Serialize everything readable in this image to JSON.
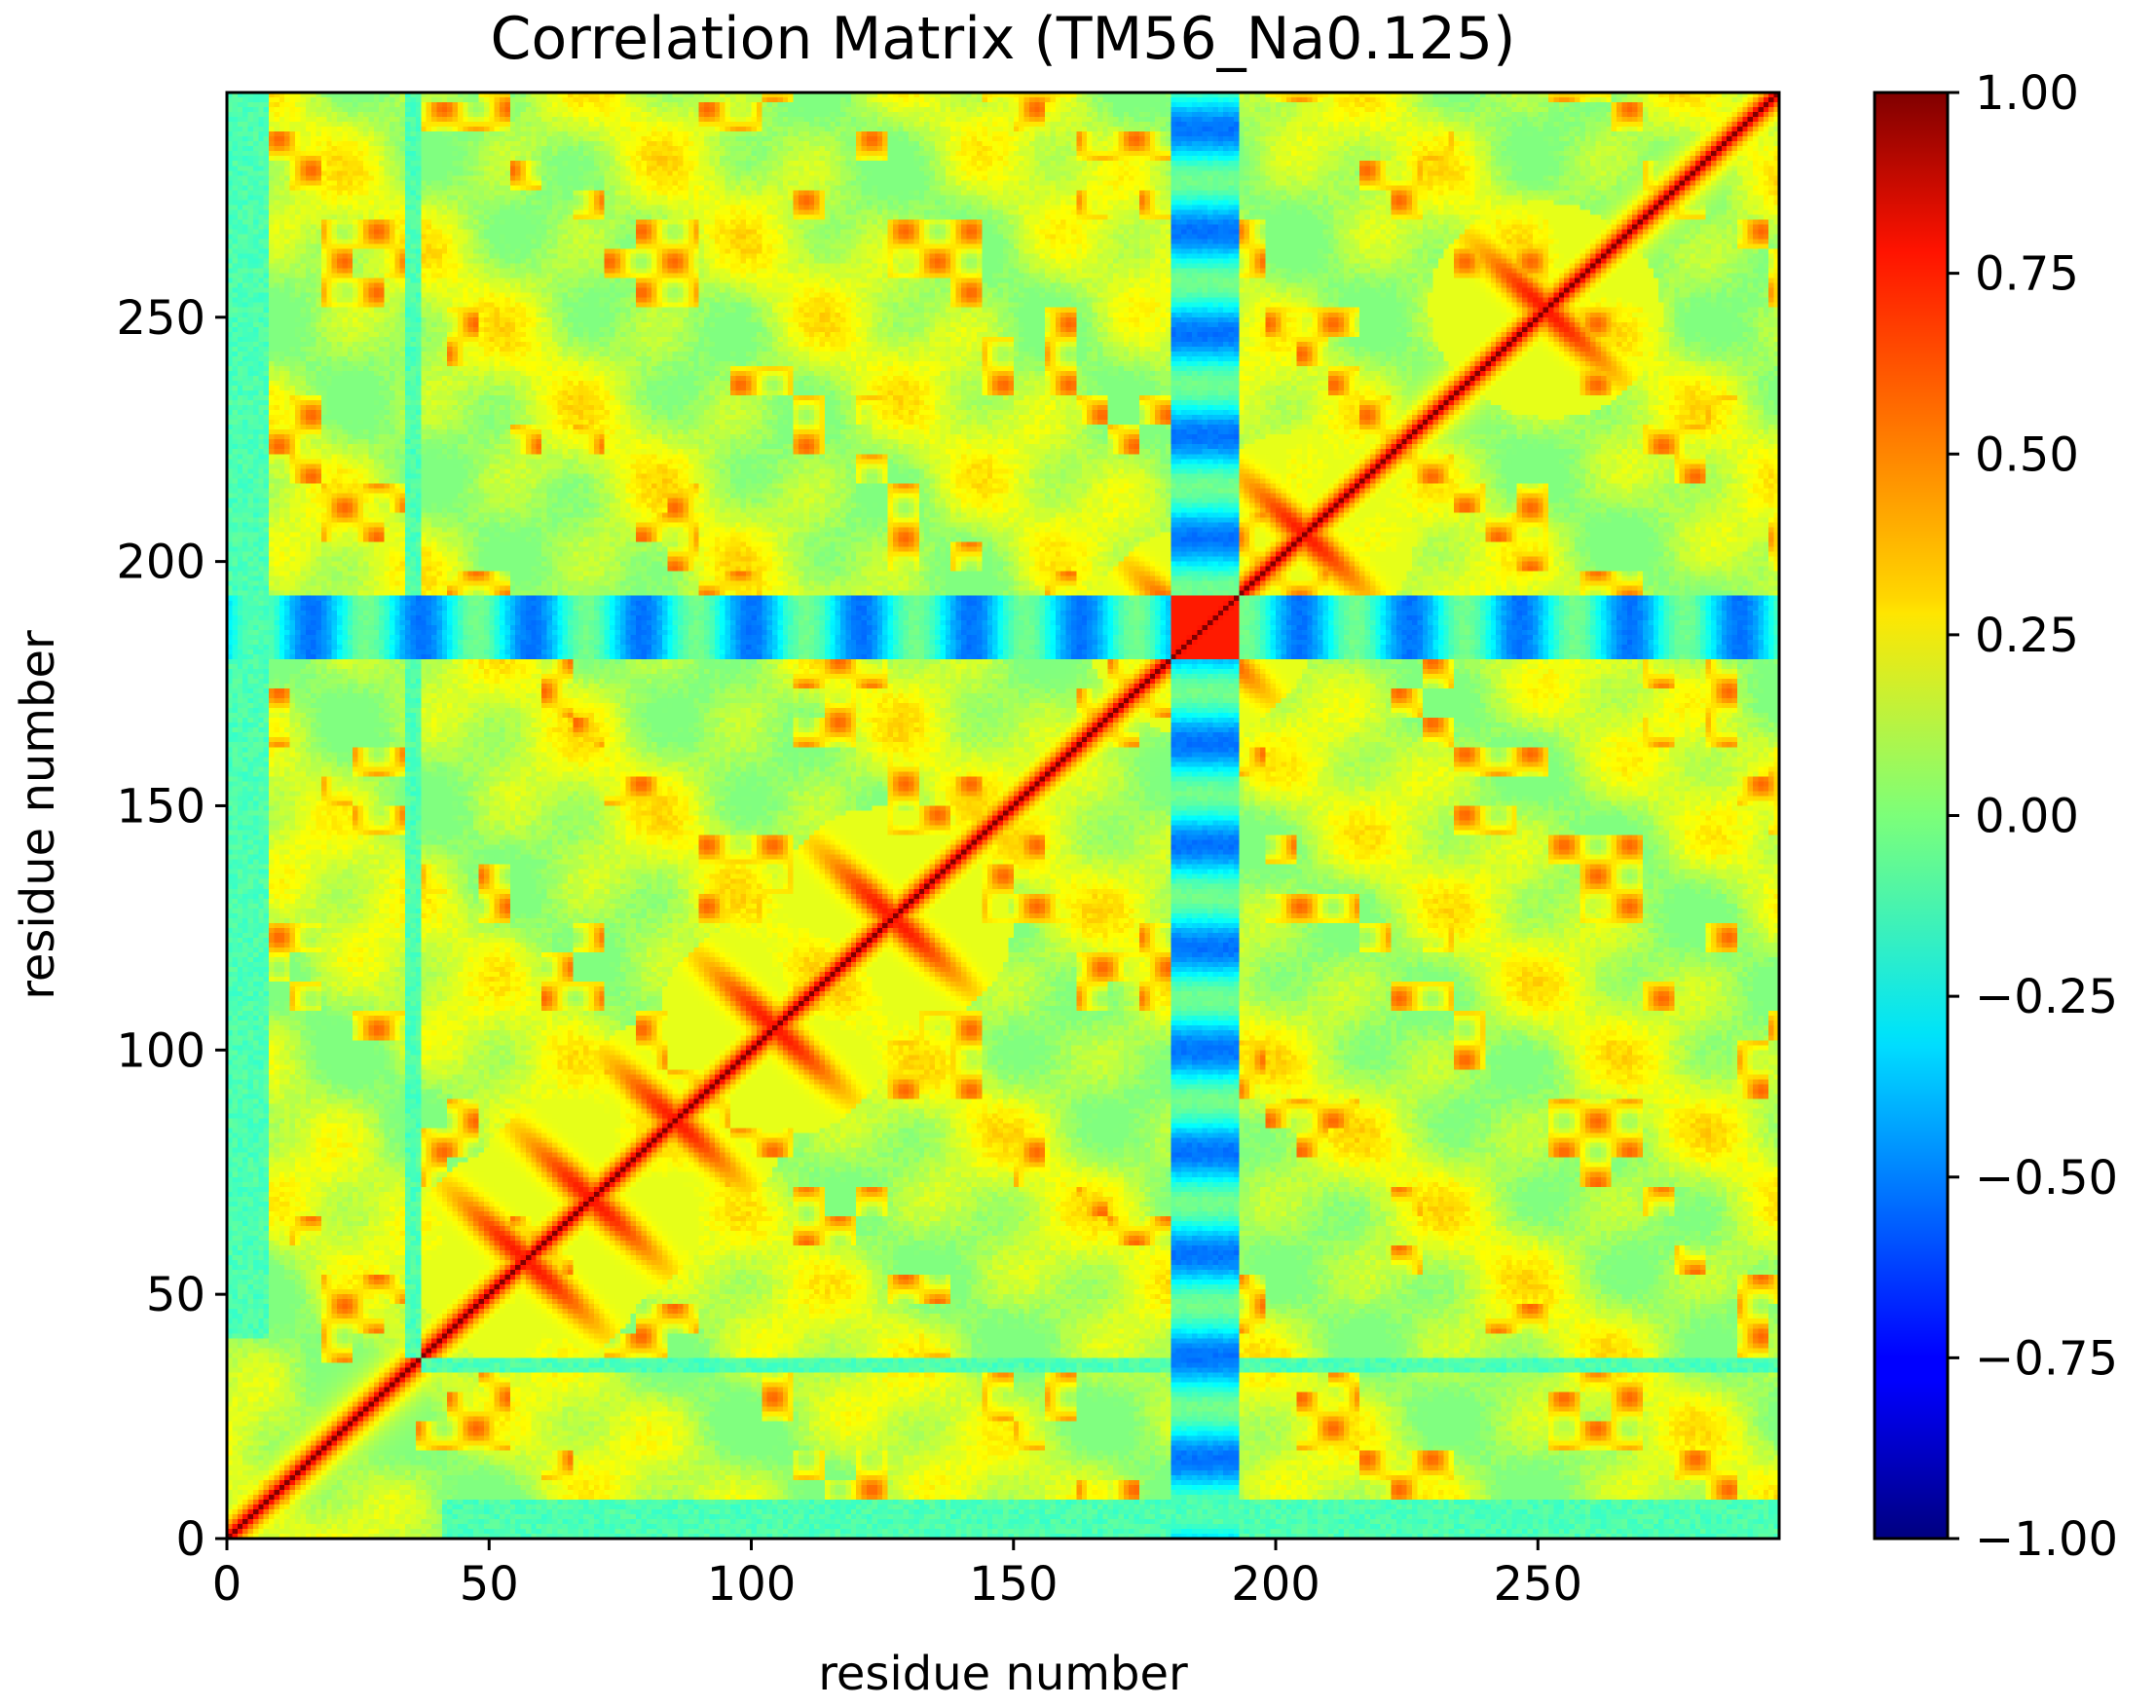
{
  "chart_data": {
    "type": "heatmap",
    "title": "Correlation Matrix (TM56_Na0.125)",
    "xlabel": "residue number",
    "ylabel": "residue number",
    "n_residues": 296,
    "xlim": [
      0,
      296
    ],
    "ylim": [
      0,
      296
    ],
    "x_ticks": [
      "0",
      "50",
      "100",
      "150",
      "200",
      "250"
    ],
    "y_ticks": [
      "0",
      "50",
      "100",
      "150",
      "200",
      "250"
    ],
    "colormap": "jet",
    "colorbar": {
      "range": [
        -1.0,
        1.0
      ],
      "ticks": [
        "−1.00",
        "−0.75",
        "−0.50",
        "−0.25",
        "0.00",
        "0.25",
        "0.50",
        "0.75",
        "1.00"
      ]
    },
    "description_of_values": {
      "diagonal": 1.0,
      "background_range": [
        -0.1,
        0.35
      ],
      "anticorrelated_band_residues": [
        180,
        192
      ],
      "anticorrelated_band_min": -0.55,
      "helix_cross_pattern_centers": [
        [
          55,
          58
        ],
        [
          70,
          68
        ],
        [
          85,
          85
        ],
        [
          103,
          105
        ],
        [
          128,
          125
        ],
        [
          185,
          185
        ],
        [
          205,
          205
        ],
        [
          250,
          252
        ]
      ]
    }
  },
  "colors": {
    "background": "#ffffff",
    "axes_frame": "#000000"
  }
}
